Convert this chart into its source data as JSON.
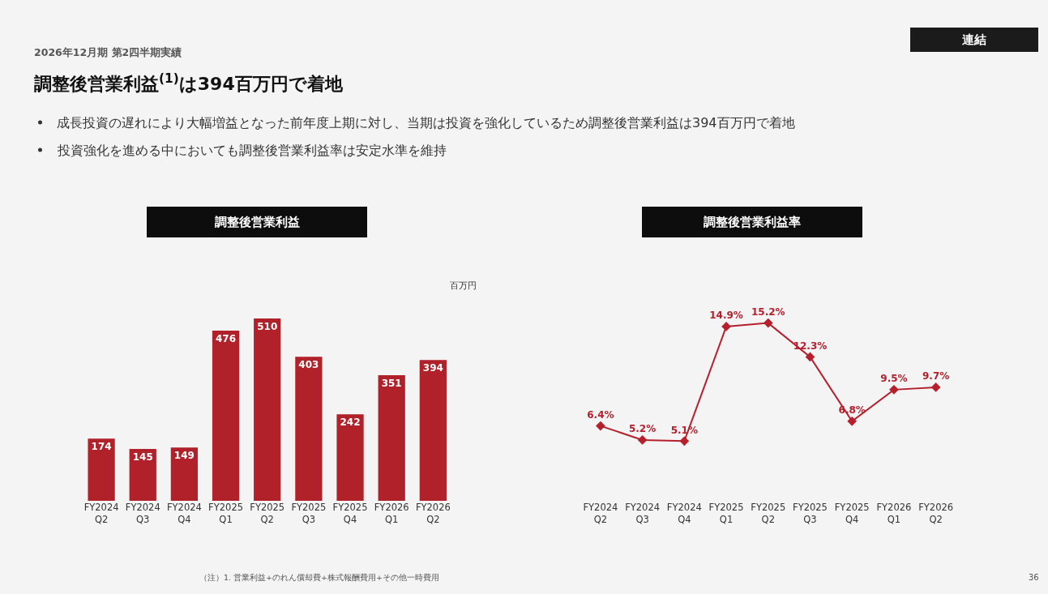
{
  "chart_data": [
    {
      "type": "bar",
      "title": "調整後営業利益",
      "ylabel": "百万円",
      "categories": [
        "FY2024\nQ2",
        "FY2024\nQ3",
        "FY2024\nQ4",
        "FY2025\nQ1",
        "FY2025\nQ2",
        "FY2025\nQ3",
        "FY2025\nQ4",
        "FY2026\nQ1",
        "FY2026\nQ2"
      ],
      "values": [
        174,
        145,
        149,
        476,
        510,
        403,
        242,
        351,
        394
      ],
      "color": "#b0212a",
      "data_labels": true,
      "tick_labels": "x",
      "grid": false,
      "annotations": [
        "2026年12月期 第2四半期実績",
        "調整後営業利益$^{(1)}$は394百万円で着地",
        "成長投資の遅れにより大幅増益となった前年度上期に対し、当期は投資を強化しているため調整後営業利益は394百万円で着地",
        "投資強化を進める中においても調整後営業利益率は安定水準を維持",
        "連結",
        "（注）1. 営業利益+のれん償却費+株式報酬費用+その他一時費用",
        "36"
      ]
    },
    {
      "type": "line",
      "title": "調整後営業利益率",
      "categories": [
        "FY2024\nQ2",
        "FY2024\nQ3",
        "FY2024\nQ4",
        "FY2025\nQ1",
        "FY2025\nQ2",
        "FY2025\nQ3",
        "FY2025\nQ4",
        "FY2026\nQ1",
        "FY2026\nQ2"
      ],
      "values": [
        6.4,
        5.2,
        5.1,
        14.9,
        15.2,
        12.3,
        6.8,
        9.5,
        9.7
      ],
      "value_labels": [
        "6.4%",
        "5.2%",
        "5.1%",
        "14.9%",
        "15.2%",
        "12.3%",
        "6.8%",
        "9.5%",
        "9.7%"
      ],
      "color": "#b5202c",
      "marker": "diamond",
      "line_style": "solid",
      "tick_labels": "x",
      "grid": false
    }
  ]
}
